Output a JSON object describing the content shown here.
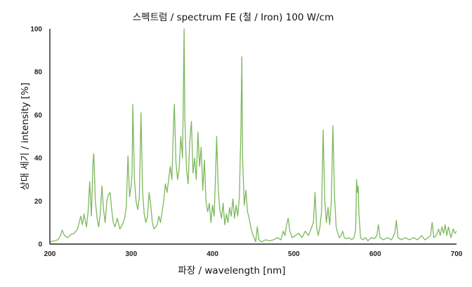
{
  "chart_data": {
    "type": "line",
    "title": "스펙트럼 / spectrum FE (철 / Iron) 100 W/cm",
    "xlabel": "파장 / wavelength [nm]",
    "ylabel": "상대 세기 / intensity [%]",
    "xlim": [
      200,
      700
    ],
    "ylim": [
      0,
      100
    ],
    "x_ticks": [
      200,
      300,
      400,
      500,
      600,
      700
    ],
    "y_ticks": [
      0,
      20,
      40,
      60,
      80,
      100
    ],
    "grid": false,
    "line_color": "#7cb85c",
    "series": [
      {
        "points": [
          [
            200,
            1
          ],
          [
            205,
            1.5
          ],
          [
            210,
            2
          ],
          [
            213,
            4
          ],
          [
            215,
            6.5
          ],
          [
            218,
            4
          ],
          [
            222,
            3
          ],
          [
            226,
            4.5
          ],
          [
            230,
            5
          ],
          [
            234,
            7
          ],
          [
            236,
            10
          ],
          [
            238,
            13
          ],
          [
            240,
            9
          ],
          [
            242,
            14
          ],
          [
            245,
            8
          ],
          [
            247,
            15
          ],
          [
            249,
            29
          ],
          [
            251,
            13
          ],
          [
            253,
            38
          ],
          [
            254,
            42
          ],
          [
            256,
            20
          ],
          [
            258,
            12
          ],
          [
            260,
            8
          ],
          [
            262,
            14
          ],
          [
            264,
            27
          ],
          [
            266,
            16
          ],
          [
            268,
            10
          ],
          [
            270,
            20
          ],
          [
            272,
            23
          ],
          [
            274,
            24
          ],
          [
            276,
            16
          ],
          [
            278,
            10
          ],
          [
            280,
            8
          ],
          [
            283,
            12
          ],
          [
            286,
            7
          ],
          [
            289,
            9
          ],
          [
            292,
            12
          ],
          [
            294,
            18
          ],
          [
            296,
            41
          ],
          [
            298,
            22
          ],
          [
            300,
            27
          ],
          [
            301,
            33
          ],
          [
            302,
            65
          ],
          [
            304,
            30
          ],
          [
            306,
            20
          ],
          [
            308,
            16
          ],
          [
            310,
            22
          ],
          [
            312,
            61
          ],
          [
            314,
            24
          ],
          [
            316,
            14
          ],
          [
            318,
            10
          ],
          [
            320,
            13
          ],
          [
            322,
            24
          ],
          [
            324,
            18
          ],
          [
            326,
            10
          ],
          [
            328,
            7
          ],
          [
            330,
            8
          ],
          [
            332,
            9
          ],
          [
            334,
            13
          ],
          [
            336,
            10
          ],
          [
            338,
            15
          ],
          [
            340,
            20
          ],
          [
            342,
            28
          ],
          [
            344,
            24
          ],
          [
            346,
            30
          ],
          [
            348,
            36
          ],
          [
            350,
            30
          ],
          [
            352,
            55
          ],
          [
            353,
            65
          ],
          [
            355,
            38
          ],
          [
            357,
            30
          ],
          [
            359,
            35
          ],
          [
            361,
            50
          ],
          [
            363,
            40
          ],
          [
            364,
            65
          ],
          [
            365,
            100
          ],
          [
            366,
            58
          ],
          [
            368,
            35
          ],
          [
            370,
            28
          ],
          [
            372,
            48
          ],
          [
            374,
            57
          ],
          [
            376,
            33
          ],
          [
            378,
            40
          ],
          [
            380,
            30
          ],
          [
            382,
            52
          ],
          [
            384,
            36
          ],
          [
            386,
            45
          ],
          [
            388,
            25
          ],
          [
            390,
            39
          ],
          [
            392,
            20
          ],
          [
            394,
            15
          ],
          [
            396,
            19
          ],
          [
            398,
            10
          ],
          [
            400,
            18
          ],
          [
            402,
            13
          ],
          [
            404,
            35
          ],
          [
            405,
            50
          ],
          [
            407,
            26
          ],
          [
            409,
            16
          ],
          [
            411,
            12
          ],
          [
            413,
            19
          ],
          [
            415,
            9
          ],
          [
            417,
            14
          ],
          [
            419,
            10
          ],
          [
            421,
            17
          ],
          [
            423,
            13
          ],
          [
            425,
            21
          ],
          [
            427,
            12
          ],
          [
            429,
            18
          ],
          [
            431,
            13
          ],
          [
            433,
            22
          ],
          [
            435,
            55
          ],
          [
            436,
            87
          ],
          [
            437,
            40
          ],
          [
            439,
            18
          ],
          [
            441,
            25
          ],
          [
            443,
            15
          ],
          [
            445,
            12
          ],
          [
            447,
            8
          ],
          [
            449,
            5
          ],
          [
            451,
            3
          ],
          [
            453,
            1
          ],
          [
            455,
            8
          ],
          [
            457,
            2
          ],
          [
            460,
            1
          ],
          [
            465,
            2
          ],
          [
            470,
            1.5
          ],
          [
            475,
            2
          ],
          [
            480,
            3
          ],
          [
            484,
            2
          ],
          [
            487,
            6
          ],
          [
            489,
            4
          ],
          [
            491,
            9
          ],
          [
            493,
            12
          ],
          [
            495,
            6
          ],
          [
            498,
            3
          ],
          [
            502,
            4
          ],
          [
            506,
            5
          ],
          [
            510,
            3
          ],
          [
            514,
            6
          ],
          [
            518,
            4
          ],
          [
            521,
            7
          ],
          [
            524,
            10
          ],
          [
            526,
            24
          ],
          [
            528,
            8
          ],
          [
            530,
            4
          ],
          [
            532,
            8
          ],
          [
            534,
            15
          ],
          [
            536,
            53
          ],
          [
            538,
            20
          ],
          [
            540,
            10
          ],
          [
            542,
            17
          ],
          [
            544,
            9
          ],
          [
            546,
            20
          ],
          [
            548,
            55
          ],
          [
            550,
            22
          ],
          [
            552,
            8
          ],
          [
            554,
            5
          ],
          [
            556,
            3
          ],
          [
            558,
            4
          ],
          [
            560,
            6
          ],
          [
            562,
            3
          ],
          [
            565,
            2.5
          ],
          [
            568,
            3
          ],
          [
            571,
            2
          ],
          [
            574,
            3
          ],
          [
            576,
            7
          ],
          [
            577,
            30
          ],
          [
            578,
            24
          ],
          [
            579,
            27
          ],
          [
            580,
            14
          ],
          [
            582,
            3
          ],
          [
            585,
            2
          ],
          [
            588,
            3
          ],
          [
            591,
            1.5
          ],
          [
            595,
            3
          ],
          [
            599,
            2.5
          ],
          [
            602,
            4
          ],
          [
            604,
            9
          ],
          [
            606,
            3
          ],
          [
            610,
            2
          ],
          [
            615,
            3
          ],
          [
            620,
            2
          ],
          [
            624,
            5
          ],
          [
            626,
            11
          ],
          [
            628,
            3
          ],
          [
            632,
            2
          ],
          [
            637,
            3
          ],
          [
            642,
            2
          ],
          [
            647,
            3
          ],
          [
            652,
            2
          ],
          [
            657,
            4
          ],
          [
            661,
            2
          ],
          [
            665,
            3
          ],
          [
            668,
            4
          ],
          [
            670,
            10
          ],
          [
            672,
            3
          ],
          [
            675,
            4
          ],
          [
            678,
            7
          ],
          [
            680,
            4
          ],
          [
            682,
            8
          ],
          [
            684,
            5
          ],
          [
            686,
            9
          ],
          [
            688,
            4
          ],
          [
            690,
            8
          ],
          [
            693,
            3
          ],
          [
            696,
            7
          ],
          [
            698,
            5
          ],
          [
            700,
            6
          ]
        ]
      }
    ]
  }
}
